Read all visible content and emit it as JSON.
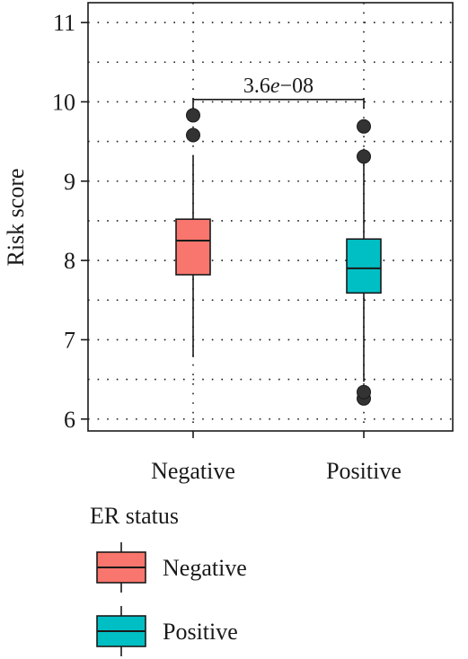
{
  "chart_data": {
    "type": "boxplot",
    "ylabel": "Risk score",
    "xlabel": "",
    "ylim": [
      5.85,
      11.25
    ],
    "yticks": [
      6,
      7,
      8,
      9,
      10,
      11
    ],
    "ytick_labels": [
      "6",
      "7",
      "8",
      "9",
      "10",
      "11"
    ],
    "grid": true,
    "categories": [
      "Negative",
      "Positive"
    ],
    "boxes": [
      {
        "name": "Negative",
        "color": "#F8766D",
        "whisker_low": 6.78,
        "q1": 7.82,
        "median": 8.25,
        "q3": 8.52,
        "whisker_high": 9.32,
        "outliers": [
          9.58,
          9.83
        ]
      },
      {
        "name": "Positive",
        "color": "#00BFC4",
        "whisker_low": 6.47,
        "q1": 7.59,
        "median": 7.9,
        "q3": 8.27,
        "whisker_high": 9.41,
        "outliers": [
          6.26,
          6.34,
          9.31,
          9.69
        ]
      }
    ],
    "comparison": {
      "pre": "3.6",
      "italic": "e",
      "post": "−08",
      "y": 10.03
    },
    "legend": {
      "title": "ER status",
      "placement": "bottom",
      "entries": [
        {
          "label": "Negative",
          "color": "#F8766D"
        },
        {
          "label": "Positive",
          "color": "#00BFC4"
        }
      ]
    }
  }
}
